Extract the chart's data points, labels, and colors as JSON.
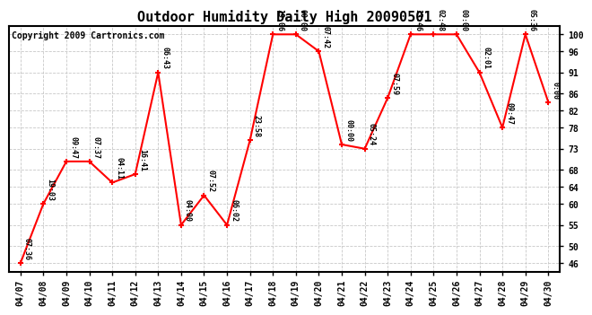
{
  "title": "Outdoor Humidity Daily High 20090501",
  "copyright": "Copyright 2009 Cartronics.com",
  "dates": [
    "04/07",
    "04/08",
    "04/09",
    "04/10",
    "04/11",
    "04/12",
    "04/13",
    "04/14",
    "04/15",
    "04/16",
    "04/17",
    "04/18",
    "04/19",
    "04/20",
    "04/21",
    "04/22",
    "04/23",
    "04/24",
    "04/25",
    "04/26",
    "04/27",
    "04/28",
    "04/29",
    "04/30"
  ],
  "values": [
    46,
    60,
    70,
    70,
    65,
    67,
    91,
    55,
    62,
    55,
    75,
    100,
    100,
    96,
    74,
    73,
    85,
    100,
    100,
    100,
    91,
    78,
    100,
    84
  ],
  "labels": [
    "07:36",
    "19:03",
    "09:47",
    "07:37",
    "04:11",
    "16:41",
    "06:43",
    "04:00",
    "07:52",
    "06:02",
    "23:58",
    "19:06",
    "00:00",
    "07:42",
    "00:00",
    "05:24",
    "07:59",
    "13:46",
    "02:48",
    "00:00",
    "02:01",
    "09:47",
    "05:36",
    "0:00"
  ],
  "line_color": "#ff0000",
  "marker_color": "#ff0000",
  "bg_color": "#ffffff",
  "grid_color": "#c8c8c8",
  "ylim": [
    44,
    102
  ],
  "yticks": [
    46,
    50,
    55,
    60,
    64,
    68,
    73,
    78,
    82,
    86,
    91,
    96,
    100
  ],
  "title_fontsize": 11,
  "label_fontsize": 6,
  "copyright_fontsize": 7,
  "tick_fontsize": 7
}
